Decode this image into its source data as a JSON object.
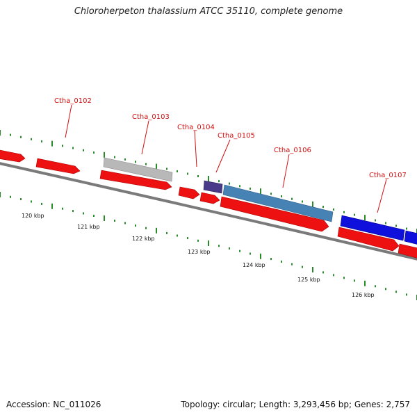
{
  "title": "Chloroherpeton thalassium ATCC 35110, complete genome",
  "footer": {
    "accession": "Accession: NC_011026",
    "summary": "Topology: circular; Length: 3,293,456 bp; Genes: 2,757"
  },
  "colors": {
    "backbone": "#7a7a7a",
    "cds": "#ee1111",
    "tick": "#2a8a2a",
    "label": "#d01010",
    "feature_gray": "#b8b8b8",
    "feature_purple": "#4a3a8a",
    "feature_steelblue": "#4682b4",
    "feature_blue": "#1010dd"
  },
  "scale": {
    "unit": "kbp",
    "ticks": [
      {
        "label": "120 kbp",
        "value": 120
      },
      {
        "label": "121 kbp",
        "value": 121
      },
      {
        "label": "122 kbp",
        "value": 122
      },
      {
        "label": "123 kbp",
        "value": 123
      },
      {
        "label": "124 kbp",
        "value": 124
      },
      {
        "label": "125 kbp",
        "value": 125
      },
      {
        "label": "126 kbp",
        "value": 126
      }
    ]
  },
  "genes": [
    {
      "label": "Ctha_0102"
    },
    {
      "label": "Ctha_0103"
    },
    {
      "label": "Ctha_0104"
    },
    {
      "label": "Ctha_0105"
    },
    {
      "label": "Ctha_0106"
    },
    {
      "label": "Ctha_0107"
    }
  ]
}
